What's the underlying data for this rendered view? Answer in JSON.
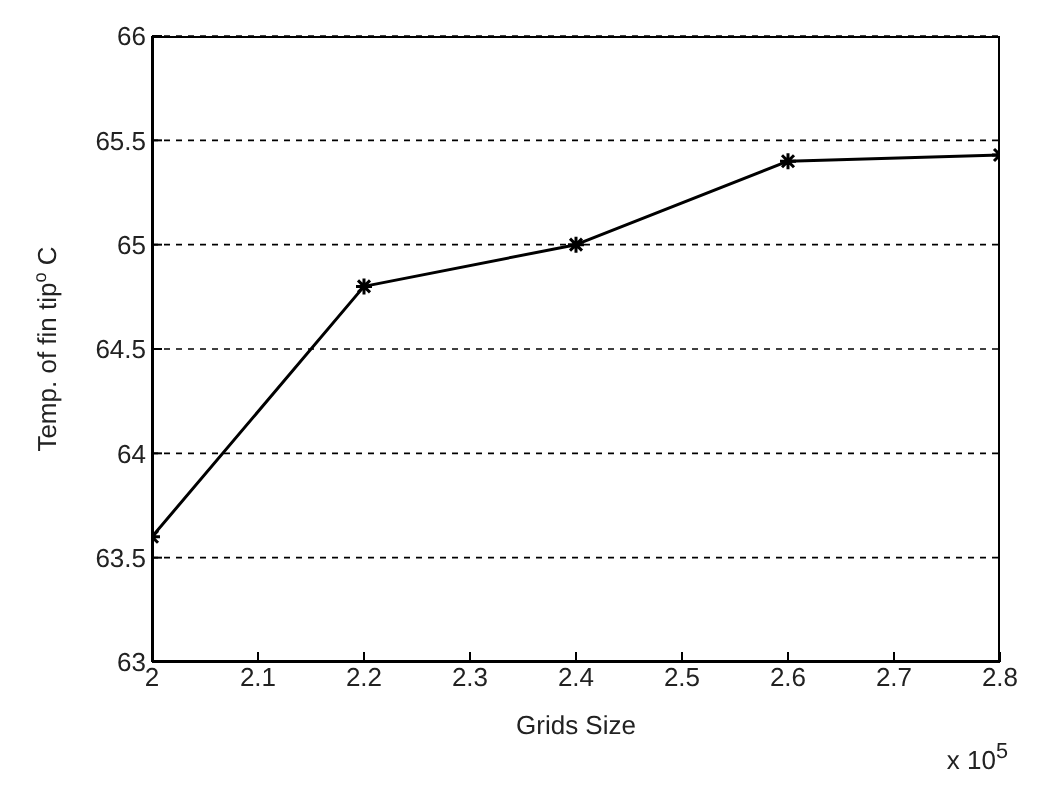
{
  "chart_data": {
    "type": "line",
    "xlabel": "Grids Size",
    "ylabel": "Temp. of fin tip$^{o}$ C",
    "annotations": [
      "x 10$^{5}$"
    ],
    "x": [
      2,
      2.2,
      2.4,
      2.6,
      2.8
    ],
    "series": [
      {
        "color": "#000000",
        "values": [
          63.6,
          64.8,
          65.0,
          65.4,
          65.43
        ]
      }
    ],
    "xlim": [
      2,
      2.8
    ],
    "xticks": [
      2,
      2.1,
      2.2,
      2.3,
      2.4,
      2.5,
      2.6,
      2.7,
      2.8
    ],
    "ylim": [
      63,
      66
    ],
    "yticks": [
      63,
      63.5,
      64,
      64.5,
      65,
      65.5,
      66
    ],
    "grid": "y",
    "marker": "cross",
    "line_style": "solid",
    "legend": false
  }
}
